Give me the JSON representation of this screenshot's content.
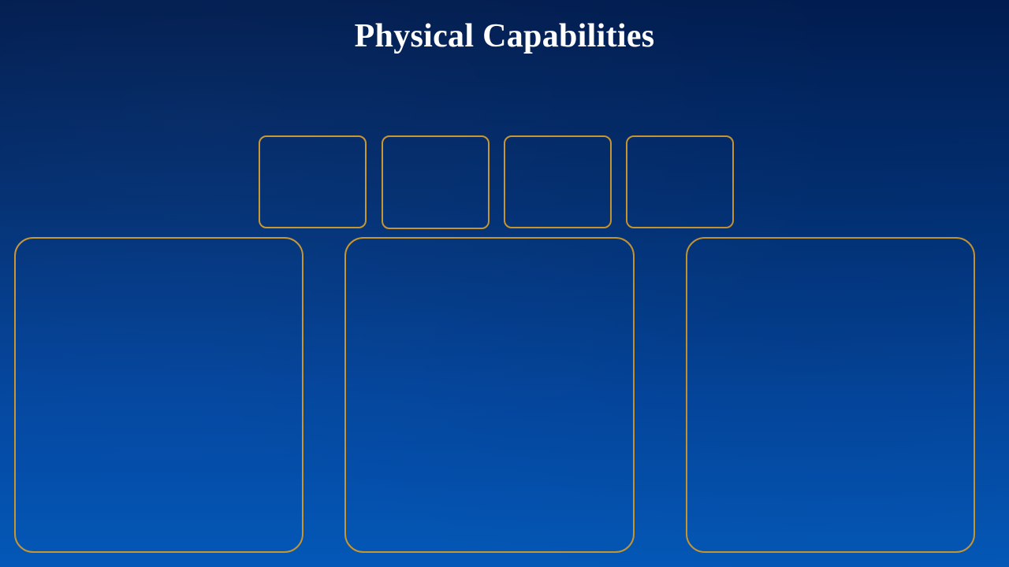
{
  "slide": {
    "title": "Physical Capabilities"
  },
  "colors": {
    "background_top": "#011c4f",
    "background_bottom": "#0458b7",
    "frame_border": "#c9962e",
    "title_text": "#ffffff"
  }
}
